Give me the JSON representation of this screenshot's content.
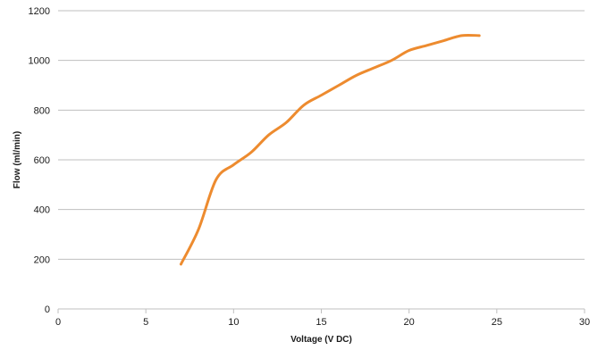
{
  "chart_data": {
    "type": "line",
    "xlabel": "Voltage (V DC)",
    "ylabel": "Flow (ml/min)",
    "xlim": [
      0,
      30
    ],
    "ylim": [
      0,
      1200
    ],
    "xticks": [
      0,
      5,
      10,
      15,
      20,
      25,
      30
    ],
    "yticks": [
      0,
      200,
      400,
      600,
      800,
      1000,
      1200
    ],
    "grid": "horizontal",
    "legend": "none",
    "series": [
      {
        "color": "#ed8b2f",
        "points": [
          {
            "x": 7,
            "y": 180
          },
          {
            "x": 8,
            "y": 320
          },
          {
            "x": 9,
            "y": 520
          },
          {
            "x": 10,
            "y": 580
          },
          {
            "x": 11,
            "y": 630
          },
          {
            "x": 12,
            "y": 700
          },
          {
            "x": 13,
            "y": 750
          },
          {
            "x": 14,
            "y": 820
          },
          {
            "x": 15,
            "y": 860
          },
          {
            "x": 16,
            "y": 900
          },
          {
            "x": 17,
            "y": 940
          },
          {
            "x": 18,
            "y": 970
          },
          {
            "x": 19,
            "y": 1000
          },
          {
            "x": 20,
            "y": 1040
          },
          {
            "x": 21,
            "y": 1060
          },
          {
            "x": 22,
            "y": 1080
          },
          {
            "x": 23,
            "y": 1100
          },
          {
            "x": 24,
            "y": 1100
          }
        ]
      }
    ]
  }
}
